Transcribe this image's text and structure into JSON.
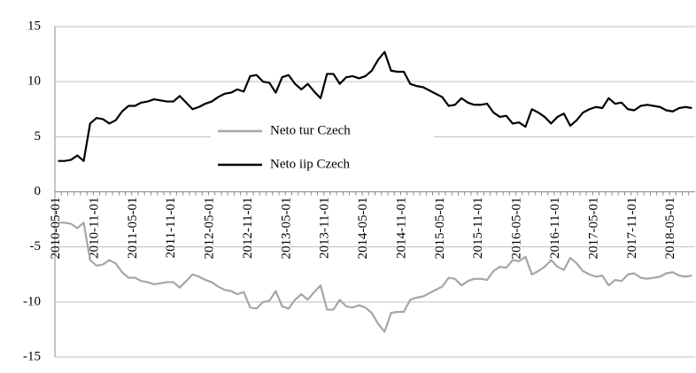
{
  "chart_data": {
    "type": "line",
    "categories": [
      "2010-05-01",
      null,
      null,
      null,
      null,
      null,
      "2010-11-01",
      null,
      null,
      null,
      null,
      null,
      "2011-05-01",
      null,
      null,
      null,
      null,
      null,
      "2011-11-01",
      null,
      null,
      null,
      null,
      null,
      "2012-05-01",
      null,
      null,
      null,
      null,
      null,
      "2012-11-01",
      null,
      null,
      null,
      null,
      null,
      "2013-05-01",
      null,
      null,
      null,
      null,
      null,
      "2013-11-01",
      null,
      null,
      null,
      null,
      null,
      "2014-05-01",
      null,
      null,
      null,
      null,
      null,
      "2014-11-01",
      null,
      null,
      null,
      null,
      null,
      "2015-05-01",
      null,
      null,
      null,
      null,
      null,
      "2015-11-01",
      null,
      null,
      null,
      null,
      null,
      "2016-05-01",
      null,
      null,
      null,
      null,
      null,
      "2016-11-01",
      null,
      null,
      null,
      null,
      null,
      "2017-05-01",
      null,
      null,
      null,
      null,
      null,
      "2017-11-01",
      null,
      null,
      null,
      null,
      null,
      "2018-05-01",
      null,
      null,
      null
    ],
    "series": [
      {
        "name": "Neto tur Czech",
        "color": "#a6a6a6",
        "values": [
          -2.8,
          -2.8,
          -2.9,
          -3.3,
          -2.8,
          -6.2,
          -6.7,
          -6.6,
          -6.2,
          -6.5,
          -7.3,
          -7.8,
          -7.8,
          -8.1,
          -8.2,
          -8.4,
          -8.3,
          -8.2,
          -8.2,
          -8.7,
          -8.1,
          -7.5,
          -7.7,
          -8.0,
          -8.2,
          -8.6,
          -8.9,
          -9.0,
          -9.3,
          -9.1,
          -10.5,
          -10.6,
          -10.0,
          -9.9,
          -9.0,
          -10.4,
          -10.6,
          -9.8,
          -9.3,
          -9.8,
          -9.1,
          -8.5,
          -10.7,
          -10.7,
          -9.8,
          -10.4,
          -10.5,
          -10.3,
          -10.5,
          -11.0,
          -12.0,
          -12.7,
          -11.0,
          -10.9,
          -10.9,
          -9.8,
          -9.6,
          -9.5,
          -9.2,
          -8.9,
          -8.6,
          -7.8,
          -7.9,
          -8.5,
          -8.1,
          -7.9,
          -7.9,
          -8.0,
          -7.2,
          -6.8,
          -6.9,
          -6.2,
          -6.3,
          -5.9,
          -7.5,
          -7.2,
          -6.8,
          -6.2,
          -6.8,
          -7.1,
          -6.0,
          -6.5,
          -7.2,
          -7.5,
          -7.7,
          -7.6,
          -8.5,
          -8.0,
          -8.1,
          -7.5,
          -7.4,
          -7.8,
          -7.9,
          -7.8,
          -7.7,
          -7.4,
          -7.3,
          -7.6,
          -7.7,
          -7.6
        ]
      },
      {
        "name": "Neto iip Czech",
        "color": "#000000",
        "values": [
          2.8,
          2.8,
          2.9,
          3.3,
          2.8,
          6.2,
          6.7,
          6.6,
          6.2,
          6.5,
          7.3,
          7.8,
          7.8,
          8.1,
          8.2,
          8.4,
          8.3,
          8.2,
          8.2,
          8.7,
          8.1,
          7.5,
          7.7,
          8.0,
          8.2,
          8.6,
          8.9,
          9.0,
          9.3,
          9.1,
          10.5,
          10.6,
          10.0,
          9.9,
          9.0,
          10.4,
          10.6,
          9.8,
          9.3,
          9.8,
          9.1,
          8.5,
          10.7,
          10.7,
          9.8,
          10.4,
          10.5,
          10.3,
          10.5,
          11.0,
          12.0,
          12.7,
          11.0,
          10.9,
          10.9,
          9.8,
          9.6,
          9.5,
          9.2,
          8.9,
          8.6,
          7.8,
          7.9,
          8.5,
          8.1,
          7.9,
          7.9,
          8.0,
          7.2,
          6.8,
          6.9,
          6.2,
          6.3,
          5.9,
          7.5,
          7.2,
          6.8,
          6.2,
          6.8,
          7.1,
          6.0,
          6.5,
          7.2,
          7.5,
          7.7,
          7.6,
          8.5,
          8.0,
          8.1,
          7.5,
          7.4,
          7.8,
          7.9,
          7.8,
          7.7,
          7.4,
          7.3,
          7.6,
          7.7,
          7.6
        ]
      }
    ],
    "ylim": [
      -15,
      15
    ],
    "yticks": [
      -15,
      -10,
      -5,
      0,
      5,
      10,
      15
    ],
    "grid": true
  }
}
